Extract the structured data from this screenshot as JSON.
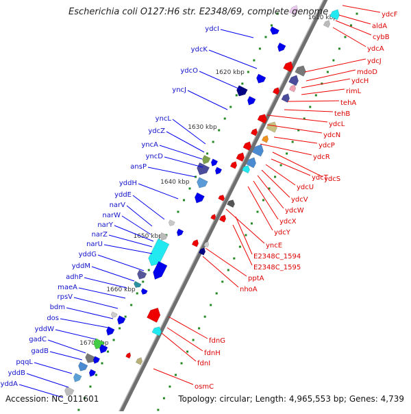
{
  "title": "Escherichia coli O127:H6 str. E2348/69, complete genome",
  "footer": {
    "accession": "Accession: NC_011601",
    "summary": "Topology: circular; Length: 4,965,553 bp; Genes: 4,739"
  },
  "colors": {
    "backbone": "#888888",
    "forward_label": "#1111cc",
    "reverse_label": "#dd0000",
    "forward_gene": "#0000ee",
    "reverse_gene": "#ee0000",
    "marker": "#228822"
  },
  "ticks": [
    "1610 kbp",
    "1620 kbp",
    "1630 kbp",
    "1640 kbp",
    "1650 kbp",
    "1660 kbp",
    "1670 kbp"
  ],
  "forward_labels": [
    "ydcI",
    "ydcK",
    "ydcO",
    "yncJ",
    "yncL",
    "ydcZ",
    "yncA",
    "yncD",
    "ansP",
    "yddH",
    "yddE",
    "narV",
    "narW",
    "narY",
    "narZ",
    "narU",
    "yddG",
    "yddM",
    "adhP",
    "maeA",
    "rpsV",
    "bdm",
    "dos",
    "yddW",
    "gadC",
    "gadB",
    "pqqL",
    "yddB",
    "yddA"
  ],
  "reverse_labels": [
    "ydcF",
    "aldA",
    "cybB",
    "ydcA",
    "ydcJ",
    "mdoD",
    "ydcH",
    "rimL",
    "tehA",
    "tehB",
    "ydcL",
    "ydcN",
    "ydcP",
    "ydcR",
    "ydcS",
    "ydcT",
    "ydcU",
    "ydcV",
    "ydcW",
    "ydcX",
    "ydcY",
    "yncE",
    "E2348C_1594",
    "E2348C_1595",
    "pptA",
    "nhoA",
    "fdnG",
    "fdnH",
    "fdnI",
    "osmC"
  ]
}
